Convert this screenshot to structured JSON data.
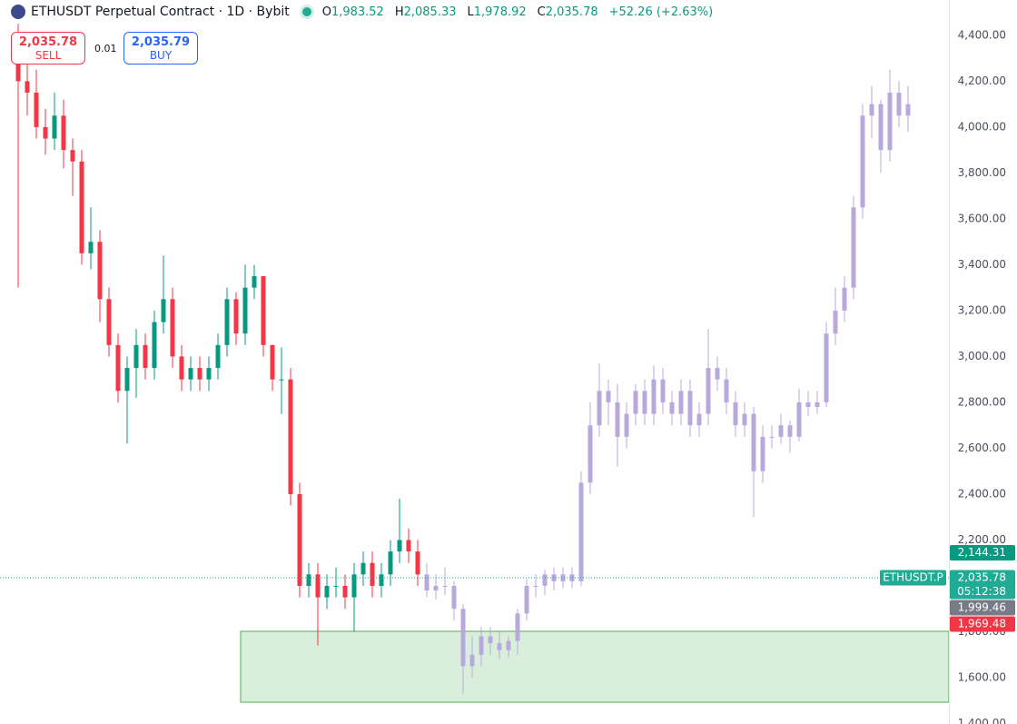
{
  "header": {
    "title": "ETHUSDT Perpetual Contract · 1D · Bybit",
    "ohlc": [
      {
        "key": "O",
        "value": "1,983.52"
      },
      {
        "key": "H",
        "value": "2,085.33"
      },
      {
        "key": "L",
        "value": "1,978.92"
      },
      {
        "key": "C",
        "value": "2,035.78"
      }
    ],
    "change": "+52.26 (+2.63%)"
  },
  "trade": {
    "sell_price": "2,035.78",
    "sell_label": "SELL",
    "quantity": "0.01",
    "buy_price": "2,035.79",
    "buy_label": "BUY"
  },
  "chart_data": {
    "type": "candlestick",
    "open": [
      4300,
      4200,
      4150,
      4000,
      3950,
      4050,
      3900,
      3850,
      3450,
      3500,
      3250,
      3050,
      2850,
      2950,
      3050,
      2950,
      3150,
      3250,
      3000,
      2900,
      2950,
      2900,
      2950,
      3050,
      3250,
      3100,
      3300,
      3350,
      3050,
      2900,
      2900,
      2400,
      2000,
      2050,
      1950,
      2000,
      2000,
      1950,
      2050,
      2100,
      2000,
      2050,
      2150,
      2200,
      2150,
      2050,
      1980,
      2000,
      2000,
      1900,
      1650,
      1700,
      1780,
      1750,
      1720,
      1760,
      1880,
      2000,
      2000,
      2050,
      2020,
      2050,
      2020,
      2450,
      2700,
      2850,
      2800,
      2650,
      2750,
      2850,
      2750,
      2900,
      2800,
      2750,
      2850,
      2700,
      2750,
      2950,
      2900,
      2800,
      2700,
      2750,
      2500,
      2650,
      2650,
      2700,
      2650,
      2800,
      2780,
      2800,
      3100,
      3200,
      3300,
      3650,
      4050,
      4100,
      3900,
      4150,
      4050
    ],
    "high": [
      4450,
      4330,
      4250,
      4080,
      4150,
      4120,
      3950,
      3900,
      3650,
      3550,
      3300,
      3100,
      3000,
      3120,
      3100,
      3200,
      3440,
      3300,
      3050,
      3000,
      3000,
      3000,
      3100,
      3300,
      3280,
      3400,
      3400,
      3350,
      3050,
      3040,
      2950,
      2450,
      2100,
      2100,
      2050,
      2080,
      2050,
      2100,
      2150,
      2150,
      2100,
      2200,
      2380,
      2250,
      2200,
      2100,
      2050,
      2080,
      2020,
      1920,
      1780,
      1820,
      1820,
      1800,
      1780,
      1900,
      2030,
      2050,
      2070,
      2080,
      2080,
      2080,
      2500,
      2800,
      2970,
      2900,
      2880,
      2800,
      2880,
      2900,
      2960,
      2950,
      2850,
      2900,
      2900,
      2800,
      3120,
      3000,
      2950,
      2850,
      2800,
      2780,
      2700,
      2700,
      2750,
      2720,
      2860,
      2850,
      2850,
      3150,
      3300,
      3350,
      3700,
      4100,
      4180,
      4120,
      4250,
      4200,
      4180
    ],
    "low": [
      3300,
      4050,
      3950,
      3880,
      3900,
      3820,
      3700,
      3400,
      3380,
      3150,
      3000,
      2800,
      2620,
      2820,
      2900,
      2900,
      3100,
      2950,
      2850,
      2850,
      2850,
      2850,
      2900,
      3000,
      3050,
      3050,
      3250,
      3000,
      2850,
      2750,
      2350,
      1950,
      1950,
      1740,
      1900,
      1950,
      1900,
      1800,
      2000,
      1950,
      1950,
      2000,
      2100,
      2100,
      2000,
      1950,
      1940,
      1960,
      1850,
      1530,
      1600,
      1650,
      1700,
      1680,
      1690,
      1700,
      1850,
      1950,
      1960,
      1980,
      1990,
      1990,
      2000,
      2400,
      2650,
      2700,
      2520,
      2600,
      2700,
      2700,
      2700,
      2750,
      2700,
      2700,
      2650,
      2650,
      2700,
      2850,
      2750,
      2650,
      2650,
      2300,
      2450,
      2600,
      2620,
      2580,
      2630,
      2740,
      2750,
      2780,
      3050,
      3150,
      3250,
      3600,
      3950,
      3800,
      3850,
      4000,
      3980
    ],
    "close": [
      4200,
      4150,
      4000,
      3950,
      4050,
      3900,
      3850,
      3450,
      3500,
      3250,
      3050,
      2850,
      2950,
      3050,
      2950,
      3150,
      3250,
      3000,
      2900,
      2950,
      2900,
      2950,
      3050,
      3250,
      3100,
      3300,
      3350,
      3050,
      2900,
      2900,
      2400,
      2000,
      2050,
      1950,
      2000,
      2000,
      1950,
      2050,
      2100,
      2000,
      2050,
      2150,
      2200,
      2150,
      2050,
      1980,
      2000,
      2000,
      1900,
      1650,
      1700,
      1780,
      1750,
      1720,
      1760,
      1880,
      2000,
      2000,
      2050,
      2020,
      2050,
      2020,
      2450,
      2700,
      2850,
      2800,
      2650,
      2750,
      2850,
      2750,
      2900,
      2800,
      2750,
      2850,
      2700,
      2750,
      2950,
      2900,
      2800,
      2700,
      2750,
      2500,
      2650,
      2650,
      2700,
      2650,
      2800,
      2780,
      2800,
      3100,
      3200,
      3300,
      3650,
      4050,
      4100,
      3900,
      4150,
      4050,
      4100
    ],
    "colors": {
      "up": "#089981",
      "down": "#f23645",
      "replay": "#b8a9dc"
    },
    "replay_from": 45,
    "ylim": [
      1398,
      4554
    ],
    "yticks": [
      {
        "value": 1400,
        "label": "1,400.00"
      },
      {
        "value": 1600,
        "label": "1,600.00"
      },
      {
        "value": 1800,
        "label": "1,800.00"
      },
      {
        "value": 2000,
        "label": "2,000.00"
      },
      {
        "value": 2200,
        "label": "2,200.00"
      },
      {
        "value": 2400,
        "label": "2,400.00"
      },
      {
        "value": 2600,
        "label": "2,600.00"
      },
      {
        "value": 2800,
        "label": "2,800.00"
      },
      {
        "value": 3000,
        "label": "3,000.00"
      },
      {
        "value": 3200,
        "label": "3,200.00"
      },
      {
        "value": 3400,
        "label": "3,400.00"
      },
      {
        "value": 3600,
        "label": "3,600.00"
      },
      {
        "value": 3800,
        "label": "3,800.00"
      },
      {
        "value": 4000,
        "label": "4,000.00"
      },
      {
        "value": 4200,
        "label": "4,200.00"
      },
      {
        "value": 4400,
        "label": "4,400.00"
      }
    ],
    "grid": false,
    "zone": {
      "top": 1802,
      "bottom": 1493,
      "color": "#d9efdc",
      "border": "#4caf50"
    },
    "last_price": {
      "value": 2035.78,
      "label": "2,035.78",
      "color": "#22ab94",
      "countdown": "05:12:38",
      "symbol": "ETHUSDT.P"
    },
    "price_tags": [
      {
        "value": 2144.31,
        "label": "2,144.31",
        "color": "#089981"
      },
      {
        "value": 1999.46,
        "label": "1,999.46",
        "color": "#787b86"
      },
      {
        "value": 1969.48,
        "label": "1,969.48",
        "color": "#f23645"
      }
    ]
  }
}
